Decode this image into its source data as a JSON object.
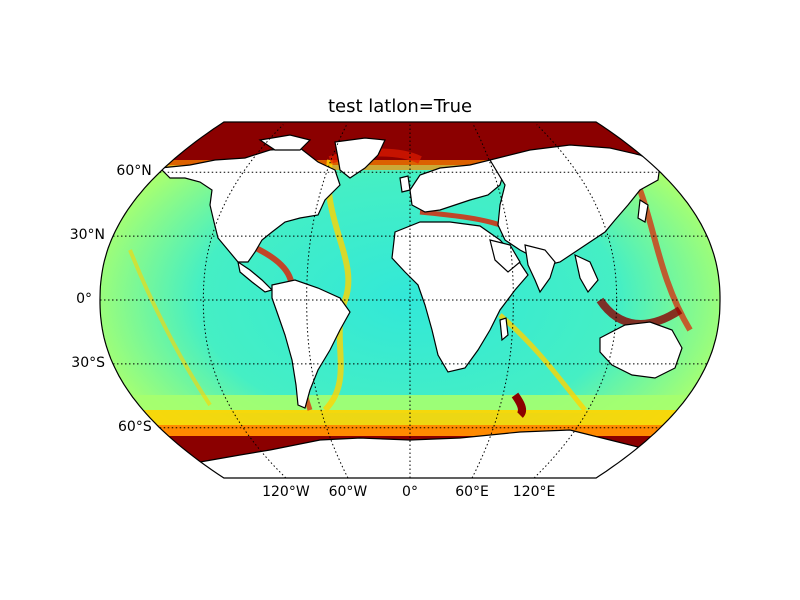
{
  "title": "test latlon=True",
  "projection": "robinson",
  "grid": true,
  "lat_labels": [
    "60°N",
    "30°N",
    "0°",
    "30°S",
    "60°S"
  ],
  "lon_labels": [
    "120°W",
    "60°W",
    "0°",
    "60°E",
    "120°E"
  ],
  "lat_lines": [
    60,
    30,
    0,
    -30,
    -60
  ],
  "lon_lines": [
    -120,
    -60,
    0,
    60,
    120
  ],
  "colormap": "jet",
  "colors": {
    "ocean_base": "#39e6b8",
    "ocean_cyan": "#32f0e6",
    "ocean_green": "#a6ff6e",
    "band_yellow": "#ffd400",
    "band_orange": "#ff8a00",
    "band_red": "#e01b00",
    "band_darkred": "#8b0000",
    "land": "#ffffff",
    "coast": "#000000"
  }
}
